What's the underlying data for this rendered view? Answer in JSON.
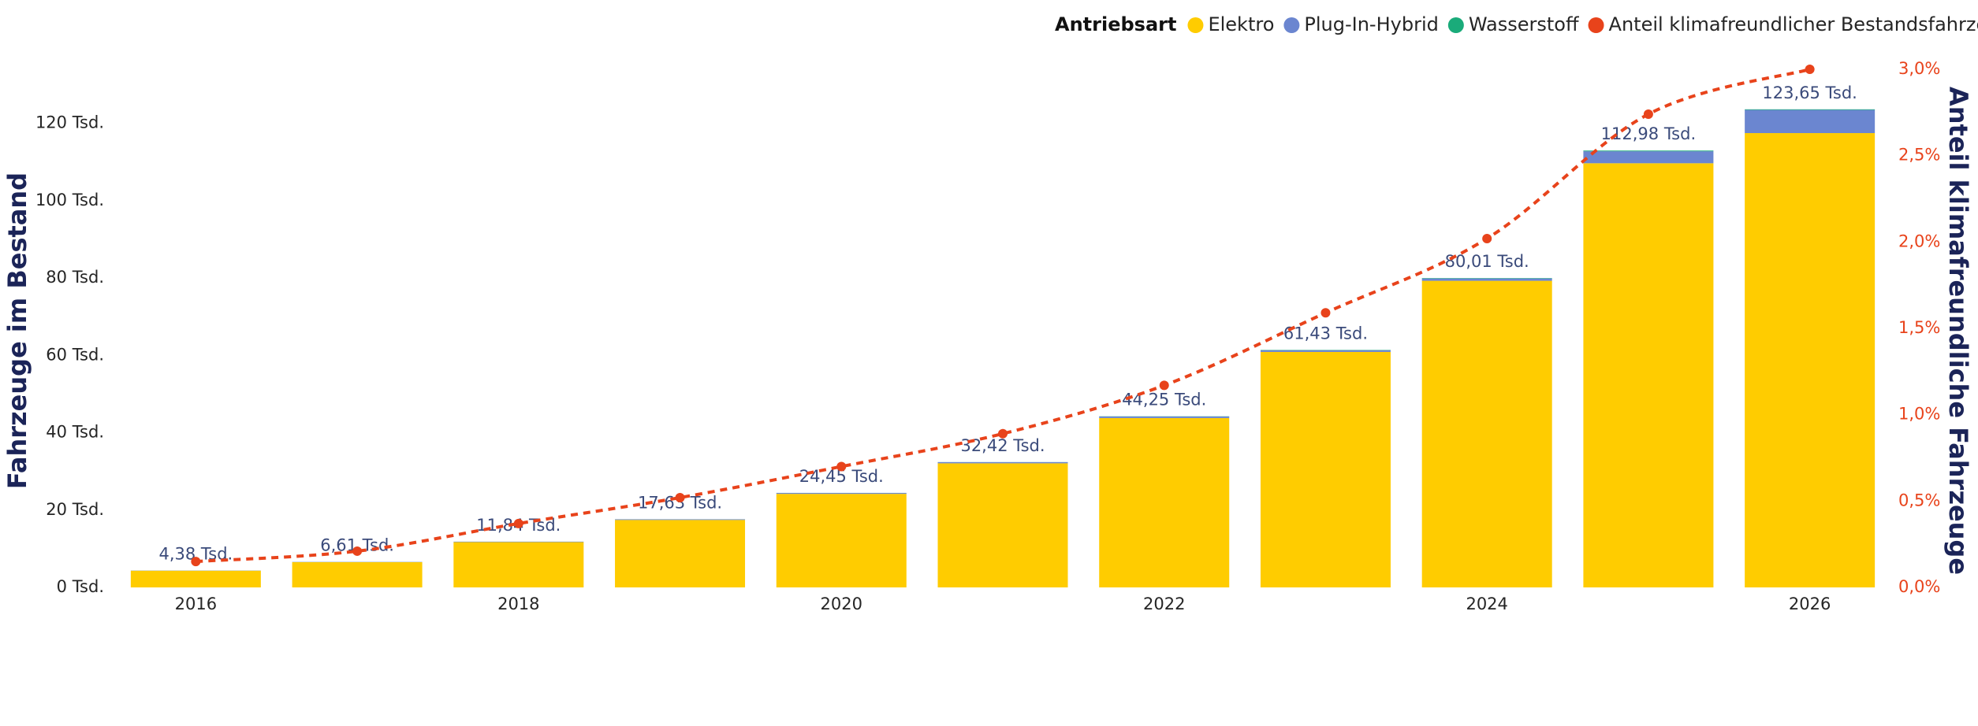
{
  "chart_data": {
    "type": "bar",
    "stacked": true,
    "legend_title": "Antriebsart",
    "y_label": "Fahrzeuge im Bestand",
    "y2_label": "Anteil klimafreundliche Fahrzeuge",
    "categories": [
      "2016",
      null,
      "2018",
      null,
      "2020",
      null,
      "2022",
      null,
      "2024",
      null,
      "2026"
    ],
    "series": [
      {
        "name": "Elektro",
        "color": "#ffcc00",
        "values": [
          4330,
          6540,
          11720,
          17450,
          24200,
          32100,
          43800,
          60900,
          79300,
          109700,
          117500
        ]
      },
      {
        "name": "Plug-In-Hybrid",
        "color": "#6b86d0",
        "values": [
          40,
          60,
          110,
          170,
          230,
          300,
          400,
          450,
          600,
          3100,
          6000
        ]
      },
      {
        "name": "Wasserstoff",
        "color": "#1aab7a",
        "values": [
          10,
          10,
          10,
          10,
          20,
          20,
          50,
          80,
          110,
          180,
          150
        ]
      },
      {
        "name": "Anteil klimafreundlicher Bestandsfahrzeuge",
        "color": "#e8431b",
        "type": "line",
        "axis": "y2",
        "values": [
          0.15,
          0.21,
          0.37,
          0.52,
          0.7,
          0.89,
          1.17,
          1.59,
          2.02,
          2.74,
          3.0
        ]
      }
    ],
    "totals": [
      4380,
      6610,
      11840,
      17630,
      24450,
      32420,
      44250,
      61430,
      80010,
      112980,
      123650
    ],
    "total_labels": [
      "4,38 Tsd.",
      "6,61 Tsd.",
      "11,84 Tsd.",
      "17,63 Tsd.",
      "24,45 Tsd.",
      "32,42 Tsd.",
      "44,25 Tsd.",
      "61,43 Tsd.",
      "80,01 Tsd.",
      "112,98 Tsd.",
      "123,65 Tsd."
    ],
    "ylim": [
      0,
      134000
    ],
    "yticks": [
      {
        "value": 0,
        "label": "0 Tsd."
      },
      {
        "value": 20000,
        "label": "20 Tsd."
      },
      {
        "value": 40000,
        "label": "40 Tsd."
      },
      {
        "value": 60000,
        "label": "60 Tsd."
      },
      {
        "value": 80000,
        "label": "80 Tsd."
      },
      {
        "value": 100000,
        "label": "100 Tsd."
      },
      {
        "value": 120000,
        "label": "120 Tsd."
      }
    ],
    "y2lim": [
      0,
      3.0
    ],
    "y2ticks": [
      {
        "value": 0,
        "label": "0,0%"
      },
      {
        "value": 0.5,
        "label": "0,5%"
      },
      {
        "value": 1.0,
        "label": "1,0%"
      },
      {
        "value": 1.5,
        "label": "1,5%"
      },
      {
        "value": 2.0,
        "label": "2,0%"
      },
      {
        "value": 2.5,
        "label": "2,5%"
      },
      {
        "value": 3.0,
        "label": "3,0%"
      }
    ]
  }
}
